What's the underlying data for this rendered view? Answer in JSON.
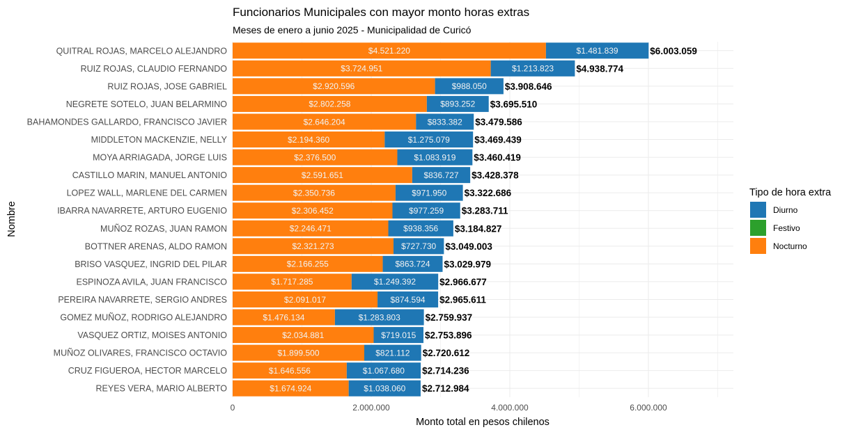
{
  "chart_data": {
    "type": "bar",
    "orientation": "horizontal",
    "stacked": true,
    "title": "Funcionarios Municipales con mayor monto horas extras",
    "subtitle": "Meses de enero a junio 2025 - Municipalidad de Curicó",
    "xlabel": "Monto total en pesos chilenos",
    "ylabel": "Nombre",
    "xlim": [
      0,
      7200000
    ],
    "x_ticks": [
      0,
      2000000,
      4000000,
      6000000
    ],
    "x_tick_labels": [
      "0",
      "2.000.000",
      "4.000.000",
      "6.000.000"
    ],
    "grid": true,
    "legend": {
      "title": "Tipo de hora extra",
      "position": "right",
      "entries": [
        {
          "name": "Diurno",
          "color": "#1f77b4"
        },
        {
          "name": "Festivo",
          "color": "#2ca02c"
        },
        {
          "name": "Nocturno",
          "color": "#ff7f0e"
        }
      ]
    },
    "categories": [
      "QUITRAL ROJAS, MARCELO ALEJANDRO",
      "RUIZ ROJAS, CLAUDIO FERNANDO",
      "RUIZ ROJAS, JOSE GABRIEL",
      "NEGRETE SOTELO, JUAN BELARMINO",
      "BAHAMONDES GALLARDO, FRANCISCO JAVIER",
      "MIDDLETON MACKENZIE, NELLY",
      "MOYA ARRIAGADA, JORGE LUIS",
      "CASTILLO MARIN, MANUEL ANTONIO",
      "LOPEZ WALL, MARLENE DEL CARMEN",
      "IBARRA NAVARRETE, ARTURO EUGENIO",
      "MUÑOZ ROZAS, JUAN RAMON",
      "BOTTNER ARENAS, ALDO RAMON",
      "BRISO VASQUEZ, INGRID DEL PILAR",
      "ESPINOZA AVILA, JUAN FRANCISCO",
      "PEREIRA NAVARRETE, SERGIO ANDRES",
      "GOMEZ MUÑOZ, RODRIGO ALEJANDRO",
      "VASQUEZ ORTIZ, MOISES ANTONIO",
      "MUÑOZ OLIVARES, FRANCISCO OCTAVIO",
      "CRUZ FIGUEROA, HECTOR MARCELO",
      "REYES VERA, MARIO ALBERTO"
    ],
    "series": [
      {
        "name": "Nocturno",
        "color": "#ff7f0e",
        "values": [
          4521220,
          3724951,
          2920596,
          2802258,
          2646204,
          2194360,
          2376500,
          2591651,
          2350736,
          2306452,
          2246471,
          2321273,
          2166255,
          1717285,
          2091017,
          1476134,
          2034881,
          1899500,
          1646556,
          1674924
        ],
        "labels": [
          "$4.521.220",
          "$3.724.951",
          "$2.920.596",
          "$2.802.258",
          "$2.646.204",
          "$2.194.360",
          "$2.376.500",
          "$2.591.651",
          "$2.350.736",
          "$2.306.452",
          "$2.246.471",
          "$2.321.273",
          "$2.166.255",
          "$1.717.285",
          "$2.091.017",
          "$1.476.134",
          "$2.034.881",
          "$1.899.500",
          "$1.646.556",
          "$1.674.924"
        ]
      },
      {
        "name": "Diurno",
        "color": "#1f77b4",
        "values": [
          1481839,
          1213823,
          988050,
          893252,
          833382,
          1275079,
          1083919,
          836727,
          971950,
          977259,
          938356,
          727730,
          863724,
          1249392,
          874594,
          1283803,
          719015,
          821112,
          1067680,
          1038060
        ],
        "labels": [
          "$1.481.839",
          "$1.213.823",
          "$988.050",
          "$893.252",
          "$833.382",
          "$1.275.079",
          "$1.083.919",
          "$836.727",
          "$971.950",
          "$977.259",
          "$938.356",
          "$727.730",
          "$863.724",
          "$1.249.392",
          "$874.594",
          "$1.283.803",
          "$719.015",
          "$821.112",
          "$1.067.680",
          "$1.038.060"
        ]
      },
      {
        "name": "Festivo",
        "color": "#2ca02c",
        "values": [
          0,
          0,
          0,
          0,
          0,
          0,
          0,
          0,
          0,
          0,
          0,
          0,
          0,
          0,
          0,
          0,
          0,
          0,
          0,
          0
        ],
        "labels": []
      }
    ],
    "totals": [
      6003059,
      4938774,
      3908646,
      3695510,
      3479586,
      3469439,
      3460419,
      3428378,
      3322686,
      3283711,
      3184827,
      3049003,
      3029979,
      2966677,
      2965611,
      2759937,
      2753896,
      2720612,
      2714236,
      2712984
    ],
    "total_labels": [
      "$6.003.059",
      "$4.938.774",
      "$3.908.646",
      "$3.695.510",
      "$3.479.586",
      "$3.469.439",
      "$3.460.419",
      "$3.428.378",
      "$3.322.686",
      "$3.283.711",
      "$3.184.827",
      "$3.049.003",
      "$3.029.979",
      "$2.966.677",
      "$2.965.611",
      "$2.759.937",
      "$2.753.896",
      "$2.720.612",
      "$2.714.236",
      "$2.712.984"
    ]
  }
}
